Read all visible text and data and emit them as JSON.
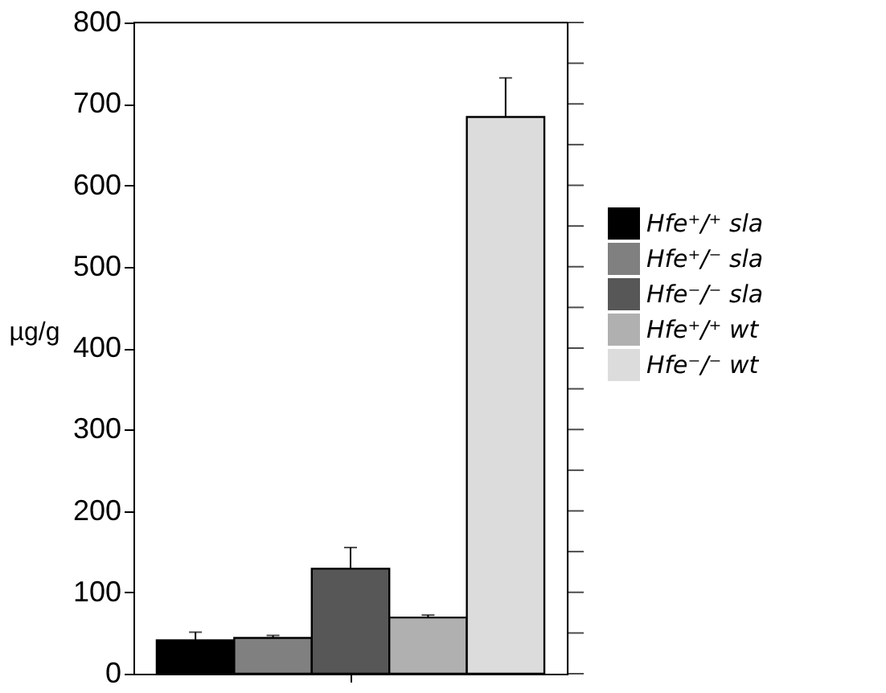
{
  "chart_data": {
    "type": "bar",
    "ylabel": "µg/g",
    "categories": [
      null
    ],
    "series": [
      {
        "name": "Hfe⁺/⁺ sla",
        "color": "#000000",
        "values": [
          41
        ],
        "errors": [
          [
            41,
            51
          ]
        ]
      },
      {
        "name": "Hfe⁺/⁻ sla",
        "color": "#808080",
        "values": [
          44
        ],
        "errors": [
          [
            44,
            47
          ]
        ]
      },
      {
        "name": "Hfe⁻/⁻ sla",
        "color": "#575757",
        "values": [
          129
        ],
        "errors": [
          [
            129,
            155
          ]
        ]
      },
      {
        "name": "Hfe⁺/⁺ wt",
        "color": "#b0b0b0",
        "values": [
          69
        ],
        "errors": [
          [
            69,
            72
          ]
        ]
      },
      {
        "name": "Hfe⁻/⁻ wt",
        "color": "#dcdcdc",
        "values": [
          684
        ],
        "errors": [
          [
            684,
            732
          ]
        ]
      }
    ],
    "ylim": [
      0,
      800
    ],
    "yticks": [
      0,
      {
        "value": 50,
        "label": null
      },
      100,
      {
        "value": 150,
        "label": null
      },
      200,
      {
        "value": 250,
        "label": null
      },
      300,
      {
        "value": 350,
        "label": null
      },
      400,
      {
        "value": 450,
        "label": null
      },
      500,
      {
        "value": 550,
        "label": null
      },
      600,
      {
        "value": 650,
        "label": null
      },
      700,
      {
        "value": 750,
        "label": null
      },
      800
    ],
    "grid": false,
    "legend": "right"
  }
}
